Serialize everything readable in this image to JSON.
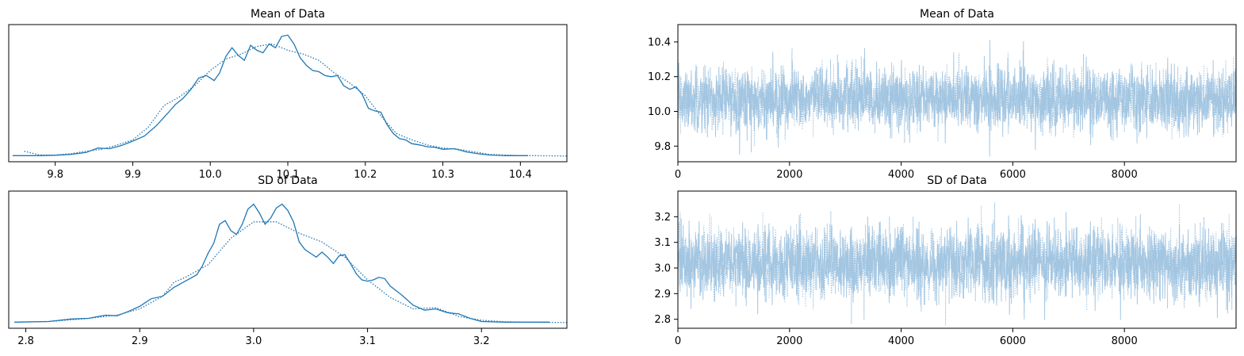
{
  "chart_data": [
    {
      "type": "line",
      "subtype": "kde",
      "title": "Mean of Data",
      "xlabel": "",
      "ylabel": "",
      "xlim": [
        9.74,
        10.46
      ],
      "ylim": [
        0,
        1
      ],
      "xticks": [
        "9.8",
        "9.9",
        "10.0",
        "10.1",
        "10.2",
        "10.3",
        "10.4"
      ],
      "grid": false,
      "series": [
        {
          "style": "solid",
          "color": "#1f77b4",
          "x": [
            9.745,
            9.78,
            9.8,
            9.82,
            9.84,
            9.855,
            9.87,
            9.885,
            9.9,
            9.915,
            9.93,
            9.945,
            9.955,
            9.965,
            9.975,
            9.985,
            9.995,
            10.005,
            10.012,
            10.02,
            10.028,
            10.036,
            10.044,
            10.052,
            10.06,
            10.068,
            10.076,
            10.084,
            10.092,
            10.1,
            10.108,
            10.116,
            10.124,
            10.132,
            10.14,
            10.148,
            10.156,
            10.164,
            10.172,
            10.18,
            10.188,
            10.196,
            10.204,
            10.212,
            10.22,
            10.228,
            10.236,
            10.244,
            10.252,
            10.26,
            10.27,
            10.28,
            10.29,
            10.3,
            10.315,
            10.33,
            10.345,
            10.36,
            10.38,
            10.4,
            10.41
          ],
          "y": [
            0.005,
            0.005,
            0.008,
            0.015,
            0.03,
            0.065,
            0.06,
            0.085,
            0.12,
            0.16,
            0.24,
            0.34,
            0.41,
            0.46,
            0.53,
            0.62,
            0.64,
            0.6,
            0.66,
            0.79,
            0.86,
            0.8,
            0.76,
            0.88,
            0.84,
            0.82,
            0.89,
            0.86,
            0.95,
            0.96,
            0.89,
            0.78,
            0.72,
            0.68,
            0.67,
            0.64,
            0.63,
            0.64,
            0.56,
            0.53,
            0.55,
            0.49,
            0.38,
            0.36,
            0.35,
            0.25,
            0.18,
            0.14,
            0.13,
            0.1,
            0.09,
            0.075,
            0.07,
            0.055,
            0.06,
            0.035,
            0.02,
            0.01,
            0.005,
            0.005,
            0.005
          ]
        },
        {
          "style": "dotted",
          "color": "#1f77b4",
          "x": [
            9.76,
            9.78,
            9.8,
            9.82,
            9.84,
            9.86,
            9.88,
            9.9,
            9.92,
            9.94,
            9.96,
            9.98,
            10.0,
            10.02,
            10.04,
            10.06,
            10.08,
            10.1,
            10.12,
            10.14,
            10.16,
            10.18,
            10.2,
            10.22,
            10.24,
            10.26,
            10.28,
            10.3,
            10.32,
            10.34,
            10.36,
            10.38,
            10.4,
            10.42,
            10.46
          ],
          "y": [
            0.04,
            0.01,
            0.01,
            0.02,
            0.04,
            0.055,
            0.09,
            0.13,
            0.23,
            0.4,
            0.47,
            0.56,
            0.68,
            0.77,
            0.81,
            0.87,
            0.89,
            0.84,
            0.81,
            0.76,
            0.66,
            0.58,
            0.48,
            0.32,
            0.18,
            0.13,
            0.09,
            0.065,
            0.055,
            0.035,
            0.015,
            0.01,
            0.005,
            0.005,
            0.002
          ]
        }
      ]
    },
    {
      "type": "line",
      "subtype": "trace",
      "title": "Mean of Data",
      "xlabel": "",
      "ylabel": "",
      "xlim": [
        0,
        10000
      ],
      "ylim": [
        9.71,
        10.5
      ],
      "xticks": [
        "0",
        "2000",
        "4000",
        "6000",
        "8000"
      ],
      "yticks": [
        "9.8",
        "10.0",
        "10.2",
        "10.4"
      ],
      "grid": false,
      "series": [
        {
          "style": "solid",
          "color": "#9ec3e0",
          "n_draws": 10000,
          "mean": 10.07,
          "sd": 0.09
        },
        {
          "style": "dotted",
          "color": "#9ec3e0",
          "n_draws": 10000,
          "mean": 10.07,
          "sd": 0.09
        }
      ]
    },
    {
      "type": "line",
      "subtype": "kde",
      "title": "SD of Data",
      "xlabel": "",
      "ylabel": "",
      "xlim": [
        2.785,
        3.275
      ],
      "ylim": [
        0,
        1
      ],
      "xticks": [
        "2.8",
        "2.9",
        "3.0",
        "3.1",
        "3.2"
      ],
      "grid": false,
      "series": [
        {
          "style": "solid",
          "color": "#1f77b4",
          "x": [
            2.79,
            2.82,
            2.84,
            2.855,
            2.87,
            2.88,
            2.89,
            2.9,
            2.91,
            2.92,
            2.93,
            2.94,
            2.95,
            2.955,
            2.96,
            2.965,
            2.97,
            2.975,
            2.98,
            2.985,
            2.99,
            2.995,
            3.0,
            3.005,
            3.01,
            3.015,
            3.02,
            3.025,
            3.03,
            3.035,
            3.04,
            3.045,
            3.05,
            3.055,
            3.06,
            3.065,
            3.07,
            3.075,
            3.08,
            3.085,
            3.09,
            3.095,
            3.1,
            3.105,
            3.11,
            3.115,
            3.12,
            3.13,
            3.14,
            3.15,
            3.16,
            3.17,
            3.18,
            3.19,
            3.2,
            3.22,
            3.24,
            3.26
          ],
          "y": [
            0.005,
            0.01,
            0.03,
            0.035,
            0.06,
            0.055,
            0.09,
            0.13,
            0.19,
            0.21,
            0.28,
            0.33,
            0.38,
            0.45,
            0.55,
            0.63,
            0.78,
            0.81,
            0.73,
            0.7,
            0.78,
            0.9,
            0.94,
            0.87,
            0.78,
            0.83,
            0.91,
            0.94,
            0.89,
            0.8,
            0.64,
            0.58,
            0.55,
            0.52,
            0.56,
            0.52,
            0.47,
            0.53,
            0.54,
            0.47,
            0.39,
            0.34,
            0.33,
            0.34,
            0.36,
            0.35,
            0.29,
            0.22,
            0.14,
            0.1,
            0.11,
            0.08,
            0.07,
            0.035,
            0.01,
            0.005,
            0.005,
            0.005
          ]
        },
        {
          "style": "dotted",
          "color": "#1f77b4",
          "x": [
            2.79,
            2.82,
            2.85,
            2.88,
            2.9,
            2.92,
            2.93,
            2.94,
            2.96,
            2.98,
            3.0,
            3.02,
            3.04,
            3.06,
            3.08,
            3.1,
            3.12,
            3.14,
            3.16,
            3.18,
            3.2,
            3.22,
            3.24,
            3.275
          ],
          "y": [
            0.005,
            0.01,
            0.03,
            0.06,
            0.11,
            0.21,
            0.32,
            0.36,
            0.46,
            0.67,
            0.8,
            0.8,
            0.71,
            0.64,
            0.52,
            0.34,
            0.2,
            0.11,
            0.12,
            0.05,
            0.02,
            0.008,
            0.004,
            0.002
          ]
        }
      ]
    },
    {
      "type": "line",
      "subtype": "trace",
      "title": "SD of Data",
      "xlabel": "",
      "ylabel": "",
      "xlim": [
        0,
        10000
      ],
      "ylim": [
        2.765,
        3.3
      ],
      "xticks": [
        "0",
        "2000",
        "4000",
        "6000",
        "8000"
      ],
      "yticks": [
        "2.8",
        "2.9",
        "3.0",
        "3.1",
        "3.2"
      ],
      "grid": false,
      "series": [
        {
          "style": "solid",
          "color": "#9ec3e0",
          "n_draws": 10000,
          "mean": 3.02,
          "sd": 0.07
        },
        {
          "style": "dotted",
          "color": "#9ec3e0",
          "n_draws": 10000,
          "mean": 3.02,
          "sd": 0.07
        }
      ]
    }
  ]
}
